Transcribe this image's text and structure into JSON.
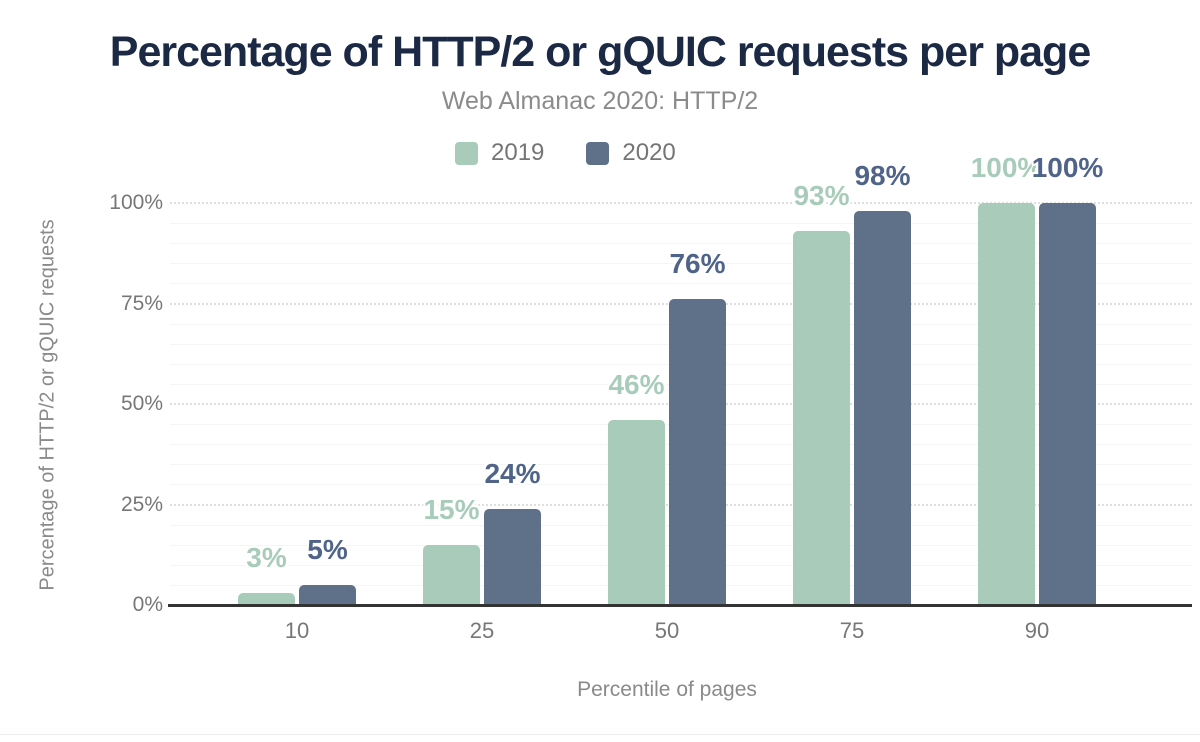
{
  "chart_data": {
    "type": "bar",
    "title": "Percentage of HTTP/2 or gQUIC requests per page",
    "subtitle": "Web Almanac 2020: HTTP/2",
    "xlabel": "Percentile of pages",
    "ylabel": "Percentage of HTTP/2 or gQUIC requests",
    "categories": [
      "10",
      "25",
      "50",
      "75",
      "90"
    ],
    "series": [
      {
        "name": "2019",
        "color": "#a9ccba",
        "label_color": "#a9ccba",
        "values": [
          3,
          15,
          46,
          93,
          100
        ],
        "labels": [
          "3%",
          "15%",
          "46%",
          "93%",
          "100%"
        ]
      },
      {
        "name": "2020",
        "color": "#5f7189",
        "label_color": "#4f6488",
        "values": [
          5,
          24,
          76,
          98,
          100
        ],
        "labels": [
          "5%",
          "24%",
          "76%",
          "98%",
          "100%"
        ]
      }
    ],
    "yticks": [
      "0%",
      "25%",
      "50%",
      "75%",
      "100%"
    ],
    "ytick_values": [
      0,
      25,
      50,
      75,
      100
    ],
    "ylim": [
      0,
      100
    ],
    "grid": {
      "major_interval": 25,
      "minor_interval": 5
    },
    "legend_position": "top",
    "colors": {
      "title": "#1c2945",
      "subtitle": "#8b8b8b",
      "tick_text": "#777777",
      "axis_title_text": "#8a8a8a",
      "axis_line": "#333333",
      "grid_major": "#dedede",
      "grid_minor": "#f5f5f5",
      "background": "#ffffff"
    }
  }
}
